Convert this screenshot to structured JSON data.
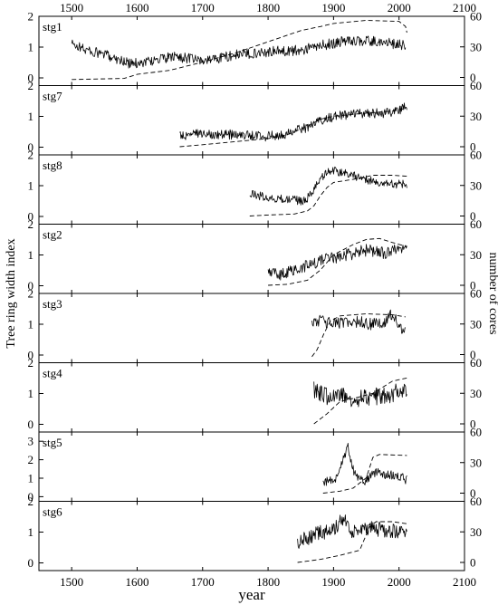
{
  "chart_data": {
    "type": "line",
    "xlabel": "year",
    "ylabel_left": "Tree ring width index",
    "ylabel_right": "number of cores",
    "xlim": [
      1450,
      2100
    ],
    "x_ticks": [
      1500,
      1600,
      1700,
      1800,
      1900,
      2000,
      2100
    ],
    "right_ticks": [
      0,
      30,
      60
    ],
    "right_ylim": [
      -8,
      60
    ],
    "grid": false,
    "series_styles": {
      "ring_width_index": "solid",
      "number_of_cores": "dashed"
    },
    "panels": [
      {
        "label": "stg1",
        "ylim": [
          -0.25,
          2
        ],
        "yticks": [
          0,
          1,
          2
        ],
        "start": 1500,
        "end": 2010,
        "ring_width_index": {
          "knots": [
            [
              1500,
              1.1
            ],
            [
              1530,
              0.85
            ],
            [
              1560,
              0.7
            ],
            [
              1590,
              0.45
            ],
            [
              1620,
              0.55
            ],
            [
              1660,
              0.7
            ],
            [
              1700,
              0.55
            ],
            [
              1750,
              0.75
            ],
            [
              1800,
              0.85
            ],
            [
              1850,
              0.9
            ],
            [
              1880,
              1.05
            ],
            [
              1920,
              1.2
            ],
            [
              1950,
              1.2
            ],
            [
              1980,
              1.15
            ],
            [
              2010,
              1.05
            ]
          ],
          "noise": 0.17
        },
        "number_of_cores": [
          [
            1500,
            -2
          ],
          [
            1580,
            -1
          ],
          [
            1600,
            3
          ],
          [
            1650,
            7
          ],
          [
            1700,
            15
          ],
          [
            1750,
            24
          ],
          [
            1800,
            35
          ],
          [
            1850,
            46
          ],
          [
            1880,
            50
          ],
          [
            1900,
            53
          ],
          [
            1950,
            56
          ],
          [
            2000,
            55
          ],
          [
            2010,
            50
          ],
          [
            2012,
            44
          ]
        ]
      },
      {
        "label": "stg7",
        "ylim": [
          -0.25,
          2
        ],
        "yticks": [
          0,
          1,
          2
        ],
        "start": 1665,
        "end": 2012,
        "ring_width_index": {
          "knots": [
            [
              1665,
              0.35
            ],
            [
              1700,
              0.45
            ],
            [
              1750,
              0.4
            ],
            [
              1800,
              0.35
            ],
            [
              1830,
              0.45
            ],
            [
              1860,
              0.65
            ],
            [
              1890,
              0.95
            ],
            [
              1920,
              1.05
            ],
            [
              1950,
              1.1
            ],
            [
              1980,
              1.1
            ],
            [
              2012,
              1.3
            ]
          ],
          "noise": 0.16
        },
        "number_of_cores": [
          [
            1665,
            0
          ],
          [
            1700,
            2
          ],
          [
            1750,
            5
          ],
          [
            1800,
            8
          ],
          [
            1830,
            12
          ],
          [
            1860,
            20
          ],
          [
            1880,
            27
          ],
          [
            1900,
            30
          ],
          [
            1950,
            33
          ],
          [
            1990,
            35
          ],
          [
            2012,
            38
          ]
        ]
      },
      {
        "label": "stg8",
        "ylim": [
          -0.25,
          2
        ],
        "yticks": [
          0,
          1,
          2
        ],
        "start": 1772,
        "end": 2012,
        "ring_width_index": {
          "knots": [
            [
              1772,
              0.75
            ],
            [
              1800,
              0.6
            ],
            [
              1830,
              0.55
            ],
            [
              1855,
              0.5
            ],
            [
              1865,
              0.7
            ],
            [
              1880,
              1.2
            ],
            [
              1895,
              1.5
            ],
            [
              1920,
              1.4
            ],
            [
              1950,
              1.2
            ],
            [
              1980,
              1.05
            ],
            [
              2012,
              1.05
            ]
          ],
          "noise": 0.14
        },
        "number_of_cores": [
          [
            1772,
            0
          ],
          [
            1800,
            1
          ],
          [
            1840,
            2
          ],
          [
            1860,
            5
          ],
          [
            1870,
            10
          ],
          [
            1880,
            20
          ],
          [
            1890,
            28
          ],
          [
            1900,
            33
          ],
          [
            1930,
            36
          ],
          [
            1960,
            40
          ],
          [
            1990,
            40
          ],
          [
            2012,
            39
          ]
        ]
      },
      {
        "label": "stg2",
        "ylim": [
          -0.25,
          2
        ],
        "yticks": [
          0,
          1,
          2
        ],
        "start": 1800,
        "end": 2012,
        "ring_width_index": {
          "knots": [
            [
              1800,
              0.5
            ],
            [
              1820,
              0.35
            ],
            [
              1850,
              0.6
            ],
            [
              1880,
              0.8
            ],
            [
              1920,
              1.0
            ],
            [
              1950,
              1.15
            ],
            [
              1980,
              1.05
            ],
            [
              2012,
              1.25
            ]
          ],
          "noise": 0.2
        },
        "number_of_cores": [
          [
            1800,
            0
          ],
          [
            1830,
            1
          ],
          [
            1860,
            5
          ],
          [
            1880,
            15
          ],
          [
            1900,
            30
          ],
          [
            1930,
            40
          ],
          [
            1950,
            45
          ],
          [
            1970,
            46
          ],
          [
            1990,
            42
          ],
          [
            2012,
            38
          ]
        ]
      },
      {
        "label": "stg3",
        "ylim": [
          -0.25,
          2
        ],
        "yticks": [
          0,
          1,
          2
        ],
        "start": 1867,
        "end": 2010,
        "ring_width_index": {
          "knots": [
            [
              1867,
              1.0
            ],
            [
              1880,
              1.15
            ],
            [
              1900,
              1.0
            ],
            [
              1930,
              1.1
            ],
            [
              1960,
              1.0
            ],
            [
              1980,
              1.1
            ],
            [
              1990,
              1.35
            ],
            [
              2000,
              1.0
            ],
            [
              2010,
              0.75
            ]
          ],
          "noise": 0.2
        },
        "number_of_cores": [
          [
            1867,
            -2
          ],
          [
            1875,
            5
          ],
          [
            1885,
            20
          ],
          [
            1895,
            33
          ],
          [
            1910,
            38
          ],
          [
            1950,
            40
          ],
          [
            1990,
            39
          ],
          [
            2010,
            37
          ]
        ]
      },
      {
        "label": "stg4",
        "ylim": [
          -0.25,
          2
        ],
        "yticks": [
          0,
          1,
          2
        ],
        "start": 1870,
        "end": 2012,
        "ring_width_index": {
          "knots": [
            [
              1870,
              1.1
            ],
            [
              1890,
              0.9
            ],
            [
              1910,
              1.0
            ],
            [
              1930,
              0.85
            ],
            [
              1960,
              0.9
            ],
            [
              1990,
              1.0
            ],
            [
              2012,
              1.2
            ]
          ],
          "noise": 0.3
        },
        "number_of_cores": [
          [
            1870,
            0
          ],
          [
            1890,
            10
          ],
          [
            1910,
            22
          ],
          [
            1930,
            25
          ],
          [
            1960,
            30
          ],
          [
            1990,
            42
          ],
          [
            2012,
            45
          ]
        ]
      },
      {
        "label": "stg5",
        "ylim": [
          -0.25,
          3.5
        ],
        "yticks": [
          0,
          1,
          2,
          3
        ],
        "start": 1884,
        "end": 2012,
        "ring_width_index": {
          "knots": [
            [
              1884,
              0.8
            ],
            [
              1905,
              0.95
            ],
            [
              1915,
              2.0
            ],
            [
              1922,
              2.7
            ],
            [
              1932,
              1.2
            ],
            [
              1945,
              0.8
            ],
            [
              1965,
              1.3
            ],
            [
              1980,
              1.2
            ],
            [
              2000,
              1.1
            ],
            [
              2012,
              0.9
            ]
          ],
          "noise": 0.25
        },
        "number_of_cores": [
          [
            1884,
            0
          ],
          [
            1910,
            2
          ],
          [
            1930,
            5
          ],
          [
            1950,
            15
          ],
          [
            1960,
            35
          ],
          [
            1970,
            38
          ],
          [
            2012,
            37
          ]
        ]
      },
      {
        "label": "stg6",
        "ylim": [
          -0.25,
          2
        ],
        "yticks": [
          0,
          1,
          2
        ],
        "start": 1845,
        "end": 2012,
        "ring_width_index": {
          "knots": [
            [
              1845,
              0.65
            ],
            [
              1870,
              0.9
            ],
            [
              1900,
              1.1
            ],
            [
              1915,
              1.4
            ],
            [
              1930,
              1.0
            ],
            [
              1950,
              1.15
            ],
            [
              1980,
              1.05
            ],
            [
              2012,
              1.05
            ]
          ],
          "noise": 0.25
        },
        "number_of_cores": [
          [
            1845,
            0
          ],
          [
            1880,
            3
          ],
          [
            1910,
            7
          ],
          [
            1940,
            12
          ],
          [
            1955,
            35
          ],
          [
            1965,
            40
          ],
          [
            1990,
            40
          ],
          [
            2012,
            38
          ]
        ]
      }
    ]
  }
}
